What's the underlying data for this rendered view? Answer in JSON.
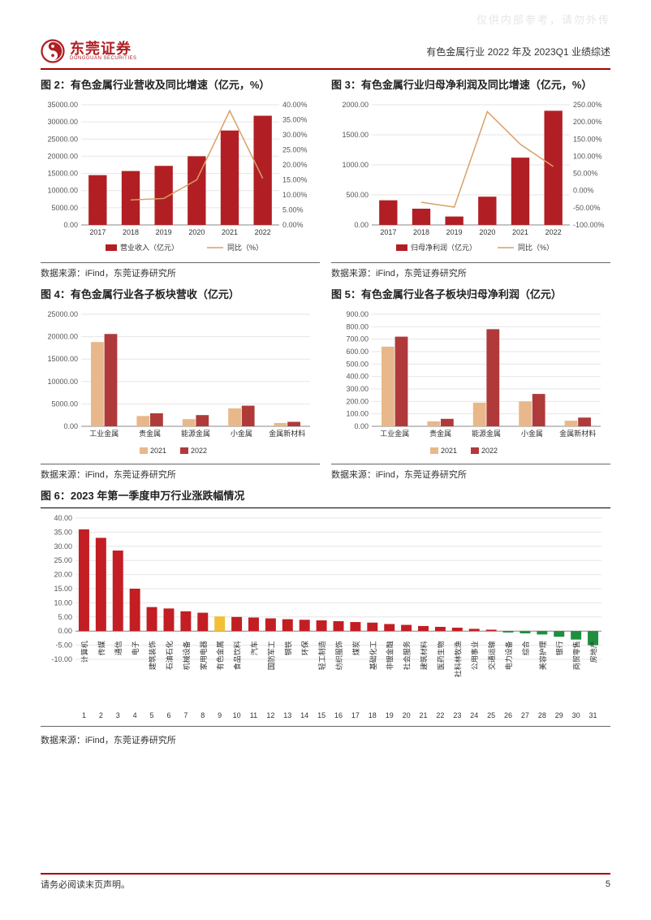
{
  "watermark": "仅供内部参考，请勿外传",
  "logo": {
    "cn": "东莞证券",
    "en": "DONGGUAN SECURITIES"
  },
  "header_right": "有色金属行业 2022 年及 2023Q1 业绩综述",
  "footer_left": "请务必阅读末页声明。",
  "footer_page": "5",
  "source_prefix": "数据来源：",
  "source_text": "iFind，东莞证券研究所",
  "chart2": {
    "title": "图 2：有色金属行业营收及同比增速（亿元，%）",
    "type": "bar-line",
    "categories": [
      "2017",
      "2018",
      "2019",
      "2020",
      "2021",
      "2022"
    ],
    "bar_values": [
      14500,
      15700,
      17200,
      20000,
      27500,
      31800
    ],
    "line_values": [
      null,
      8.3,
      8.8,
      15.0,
      38.0,
      15.5
    ],
    "bar_color": "#b11f24",
    "line_color": "#d9a066",
    "yL_min": 0,
    "yL_max": 35000,
    "yL_step": 5000,
    "yR_min": 0,
    "yR_max": 40,
    "yR_step": 5,
    "legend_bar": "营业收入（亿元）",
    "legend_line": "同比（%）",
    "grid_color": "#e6e6e6",
    "bg": "#ffffff",
    "tick_font": 9,
    "title_font": 13
  },
  "chart3": {
    "title": "图 3：有色金属行业归母净利润及同比增速（亿元，%）",
    "type": "bar-line",
    "categories": [
      "2017",
      "2018",
      "2019",
      "2020",
      "2021",
      "2022"
    ],
    "bar_values": [
      410,
      270,
      140,
      470,
      1120,
      1900
    ],
    "line_values": [
      null,
      -34,
      -48,
      230,
      135,
      70
    ],
    "bar_color": "#b11f24",
    "line_color": "#d9a066",
    "yL_min": 0,
    "yL_max": 2000,
    "yL_step": 500,
    "yR_min": -100,
    "yR_max": 250,
    "yR_step": 50,
    "legend_bar": "归母净利润（亿元）",
    "legend_line": "同比（%）",
    "grid_color": "#e6e6e6",
    "bg": "#ffffff",
    "tick_font": 9,
    "title_font": 13
  },
  "chart4": {
    "title": "图 4：有色金属行业各子板块营收（亿元）",
    "type": "grouped-bar",
    "categories": [
      "工业金属",
      "贵金属",
      "能源金属",
      "小金属",
      "金属新材料"
    ],
    "series": [
      {
        "name": "2021",
        "color": "#e8bners",
        "colorHex": "#e8b88a",
        "values": [
          18800,
          2300,
          1600,
          4000,
          750
        ]
      },
      {
        "name": "2022",
        "color": "#b03a3a",
        "colorHex": "#b03a3a",
        "values": [
          20600,
          2900,
          2500,
          4600,
          1000
        ]
      }
    ],
    "y_min": 0,
    "y_max": 25000,
    "y_step": 5000,
    "grid_color": "#e6e6e6",
    "bg": "#ffffff",
    "legend_labels": [
      "2021",
      "2022"
    ],
    "legend_colors": [
      "#e8b88a",
      "#b03a3a"
    ]
  },
  "chart5": {
    "title": "图 5：有色金属行业各子板块归母净利润（亿元）",
    "type": "grouped-bar",
    "categories": [
      "工业金属",
      "贵金属",
      "能源金属",
      "小金属",
      "金属新材料"
    ],
    "series": [
      {
        "name": "2021",
        "colorHex": "#e8b88a",
        "values": [
          640,
          40,
          190,
          200,
          45
        ]
      },
      {
        "name": "2022",
        "colorHex": "#b03a3a",
        "values": [
          720,
          60,
          780,
          260,
          70
        ]
      }
    ],
    "y_min": 0,
    "y_max": 900,
    "y_step": 100,
    "grid_color": "#e6e6e6",
    "bg": "#ffffff",
    "legend_labels": [
      "2021",
      "2022"
    ],
    "legend_colors": [
      "#e8b88a",
      "#b03a3a"
    ]
  },
  "chart6": {
    "title": "图 6：2023 年第一季度申万行业涨跌幅情况",
    "type": "bar",
    "categories": [
      "计算机",
      "传媒",
      "通信",
      "电子",
      "建筑装饰",
      "石油石化",
      "机械设备",
      "家用电器",
      "有色金属",
      "食品饮料",
      "汽车",
      "国防军工",
      "钢铁",
      "环保",
      "轻工制造",
      "纺织服饰",
      "煤炭",
      "基础化工",
      "非银金融",
      "社会服务",
      "建筑材料",
      "医药生物",
      "社科林牧渔",
      "公用事业",
      "交通运输",
      "电力设备",
      "综合",
      "美容护理",
      "银行",
      "商贸零售",
      "房地产"
    ],
    "values": [
      36,
      33,
      28.5,
      15,
      8.5,
      8,
      7,
      6.5,
      5.2,
      5,
      4.8,
      4.5,
      4.2,
      4,
      3.8,
      3.5,
      3.2,
      3,
      2.5,
      2.2,
      1.8,
      1.5,
      1.2,
      0.8,
      0.5,
      -0.5,
      -0.8,
      -1.2,
      -2,
      -3,
      -5
    ],
    "highlight_index": 8,
    "highlight_color": "#f2c037",
    "pos_color": "#c31e23",
    "neg_color": "#1e8f3e",
    "y_min": -10,
    "y_max": 40,
    "y_step": 5,
    "grid_color": "#e6e6e6",
    "bg": "#ffffff",
    "indices": [
      "1",
      "2",
      "3",
      "4",
      "5",
      "6",
      "7",
      "8",
      "9",
      "10",
      "11",
      "12",
      "13",
      "14",
      "15",
      "16",
      "17",
      "18",
      "19",
      "20",
      "21",
      "22",
      "23",
      "24",
      "25",
      "26",
      "27",
      "28",
      "29",
      "30",
      "31"
    ]
  }
}
